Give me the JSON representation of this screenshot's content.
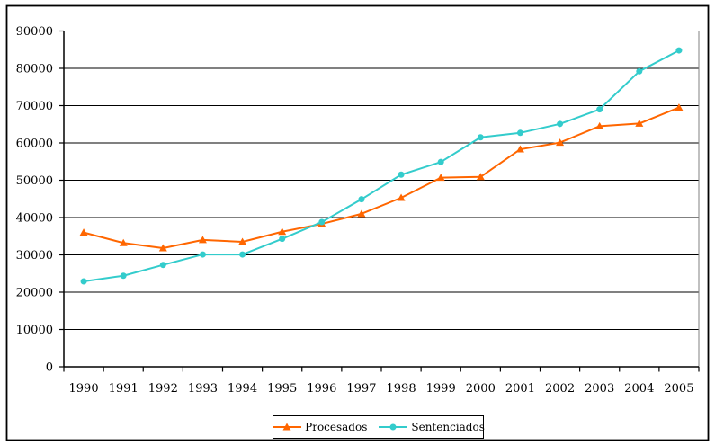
{
  "figure": {
    "background": "#ffffff",
    "frame_color": "#000000"
  },
  "chart_data": {
    "type": "line",
    "title": "",
    "xlabel": "",
    "ylabel": "",
    "categories": [
      "1990",
      "1991",
      "1992",
      "1993",
      "1994",
      "1995",
      "1996",
      "1997",
      "1998",
      "1999",
      "2000",
      "2001",
      "2002",
      "2003",
      "2004",
      "2005"
    ],
    "series": [
      {
        "name": "Procesados",
        "color": "#FF6600",
        "marker": "triangle",
        "values": [
          36000,
          33200,
          31800,
          34000,
          33500,
          36200,
          38300,
          41000,
          45300,
          50700,
          50900,
          58300,
          60100,
          64500,
          65200,
          69500
        ]
      },
      {
        "name": "Sentenciados",
        "color": "#33CCCC",
        "marker": "circle",
        "values": [
          22900,
          24400,
          27300,
          30100,
          30100,
          34300,
          38800,
          44900,
          51500,
          54900,
          61500,
          62700,
          65100,
          69000,
          79200,
          84800
        ]
      }
    ],
    "ylim": [
      0,
      90000
    ],
    "ytick_step": 10000,
    "ytick_labels": [
      "0",
      "10000",
      "20000",
      "30000",
      "40000",
      "50000",
      "60000",
      "70000",
      "80000",
      "90000"
    ],
    "grid": "horizontal",
    "gridline_color": "#000000",
    "plot_border_color": "#808080",
    "axis_color": "#000000",
    "legend_position": "bottom-center"
  }
}
